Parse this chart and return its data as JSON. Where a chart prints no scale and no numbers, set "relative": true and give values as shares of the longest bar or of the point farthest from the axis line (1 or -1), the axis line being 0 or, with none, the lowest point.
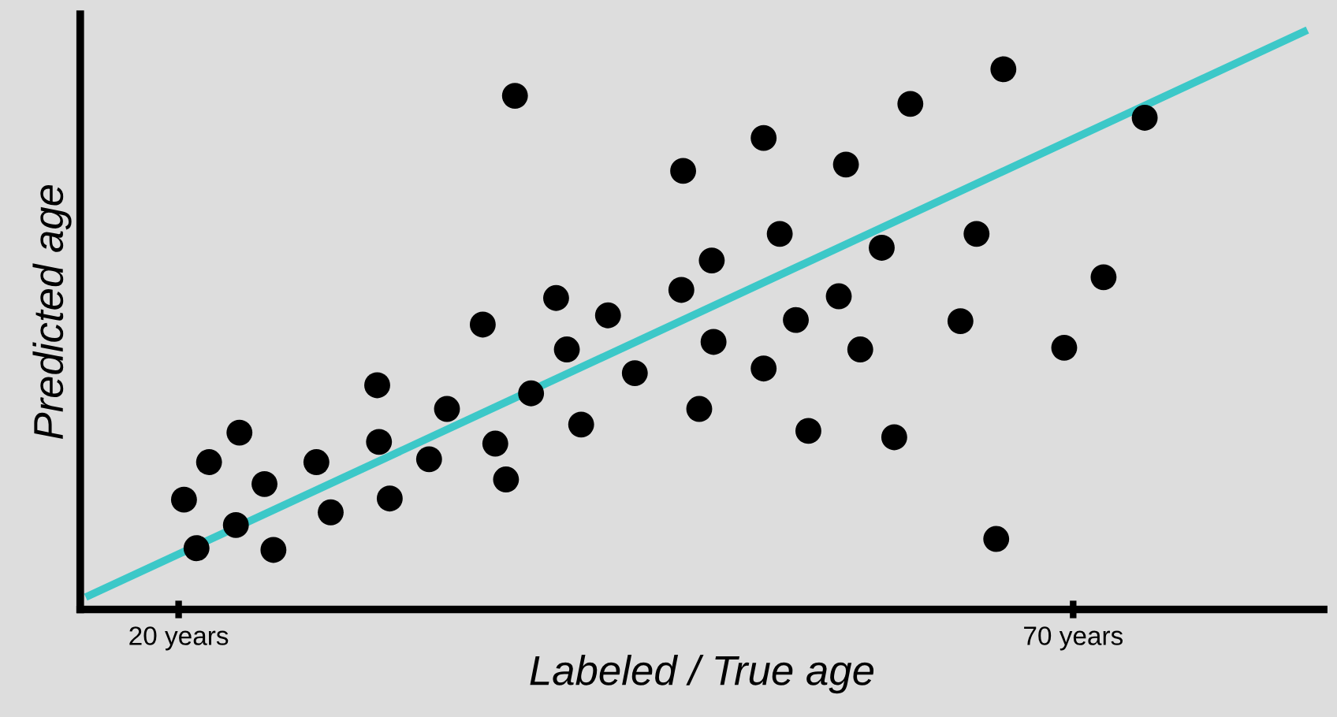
{
  "chart_data": {
    "type": "scatter",
    "relative": true,
    "xlabel": "Labeled / True age",
    "ylabel": "Predicted age",
    "xlim": [
      14.5,
      84
    ],
    "xticks": [
      {
        "value": 20,
        "label": "20 years"
      },
      {
        "value": 70,
        "label": "70 years"
      }
    ],
    "grid": false,
    "series": [
      {
        "marker": "circle",
        "color": "#000000",
        "x": [
          20.3,
          21.0,
          21.7,
          23.4,
          23.2,
          24.8,
          25.3,
          27.7,
          28.5,
          31.1,
          31.2,
          31.8,
          34.0,
          35.0,
          37.0,
          37.7,
          38.3,
          38.8,
          39.7,
          41.1,
          41.7,
          42.5,
          44.0,
          45.5,
          48.1,
          48.2,
          49.1,
          49.8,
          49.9,
          52.7,
          52.7,
          53.6,
          54.5,
          55.2,
          56.9,
          57.3,
          58.1,
          59.3,
          60.0,
          60.9,
          63.7,
          64.6,
          65.7,
          66.1,
          69.5,
          71.7,
          74.0
        ],
        "values": [
          0.19,
          0.106,
          0.255,
          0.306,
          0.146,
          0.217,
          0.103,
          0.255,
          0.168,
          0.388,
          0.29,
          0.192,
          0.26,
          0.347,
          0.493,
          0.287,
          0.225,
          0.889,
          0.374,
          0.539,
          0.45,
          0.32,
          0.509,
          0.409,
          0.553,
          0.759,
          0.347,
          0.604,
          0.463,
          0.816,
          0.417,
          0.65,
          0.501,
          0.309,
          0.542,
          0.77,
          0.45,
          0.626,
          0.298,
          0.875,
          0.499,
          0.65,
          0.122,
          0.935,
          0.453,
          0.575,
          0.851
        ]
      },
      {
        "type": "line",
        "color": "#3cc8c8",
        "x": [
          15.0,
          82.9
        ],
        "values": [
          0.024,
          1.0
        ]
      }
    ]
  }
}
